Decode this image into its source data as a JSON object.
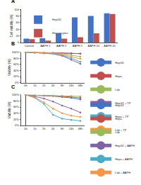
{
  "chart_data": [
    {
      "type": "bar",
      "title": "A",
      "y_label": "Cell viability (%)",
      "categories": [
        "Control",
        "AAPH 1",
        "AAPH 2",
        "AAPH 5",
        "AAPH 10",
        "AAPH 20"
      ],
      "series": [
        {
          "name": "HepG2",
          "color": "#4472c4",
          "values": [
            12,
            13,
            27,
            76,
            80,
            88
          ]
        },
        {
          "name": "Hepatocytes",
          "color": "#c0504d",
          "values": [
            10,
            6,
            12,
            16,
            28,
            86
          ]
        }
      ],
      "ylim": [
        0,
        100
      ],
      "yticks": [
        0,
        20,
        40,
        60,
        80,
        100
      ],
      "grid": false,
      "legend": "top left"
    },
    {
      "type": "line",
      "title": "B",
      "y_label": "Viability (%)",
      "marker": "circle",
      "categories": [
        "0h",
        "1h",
        "2h",
        "4h",
        "8h",
        "24h",
        "48h"
      ],
      "series": [
        {
          "name": "HepG2",
          "color": "#4472c4",
          "values": [
            100,
            99,
            99,
            98,
            97,
            96,
            95
          ]
        },
        {
          "name": "Hepa",
          "color": "#c0504d",
          "values": [
            100,
            99,
            98,
            98,
            97,
            96,
            95
          ]
        },
        {
          "name": "Lab",
          "color": "#9bbb59",
          "values": [
            100,
            99,
            98,
            97,
            95,
            90,
            85
          ]
        },
        {
          "name": "HepG2 + TP",
          "color": "#8064a2",
          "values": [
            100,
            98,
            96,
            94,
            88,
            75,
            62
          ]
        },
        {
          "name": "Hepa + TP",
          "color": "#4bacc6",
          "values": [
            100,
            98,
            97,
            95,
            90,
            80,
            68
          ]
        },
        {
          "name": "Lab + TP",
          "color": "#f79646",
          "values": [
            100,
            99,
            98,
            96,
            92,
            85,
            78
          ]
        }
      ],
      "ylim": [
        0,
        100
      ],
      "yticks": [
        {
          "value": 0,
          "label": "0%"
        },
        {
          "value": 20,
          "label": "20%"
        },
        {
          "value": 40,
          "label": "40%"
        },
        {
          "value": 60,
          "label": "60%"
        },
        {
          "value": 80,
          "label": "80%"
        },
        {
          "value": 100,
          "label": "100%"
        }
      ],
      "grid": false,
      "legend": "right"
    },
    {
      "type": "line",
      "title": "C",
      "y_label": "Viability (%)",
      "marker": "circle",
      "categories": [
        "0h",
        "1h",
        "2h",
        "4h",
        "8h",
        "24h",
        "48h"
      ],
      "series": [
        {
          "name": "HepG2",
          "color": "#4472c4",
          "values": [
            100,
            99,
            98,
            96,
            93,
            90,
            85
          ]
        },
        {
          "name": "Hepa",
          "color": "#c0504d",
          "values": [
            100,
            99,
            98,
            97,
            95,
            93,
            90
          ]
        },
        {
          "name": "Lab",
          "color": "#9bbb59",
          "values": [
            100,
            99,
            99,
            98,
            97,
            96,
            95
          ]
        },
        {
          "name": "HepG2 + AAPH",
          "color": "#8064a2",
          "values": [
            100,
            95,
            88,
            78,
            65,
            55,
            42
          ]
        },
        {
          "name": "Hepa + AAPH",
          "color": "#4bacc6",
          "values": [
            100,
            90,
            70,
            35,
            22,
            18,
            15
          ]
        },
        {
          "name": "Lab + AAPH",
          "color": "#f79646",
          "values": [
            100,
            92,
            75,
            55,
            40,
            32,
            28
          ]
        }
      ],
      "ylim": [
        0,
        100
      ],
      "yticks": [
        {
          "value": 0,
          "label": "0%"
        },
        {
          "value": 20,
          "label": "20%"
        },
        {
          "value": 40,
          "label": "40%"
        },
        {
          "value": 60,
          "label": "60%"
        },
        {
          "value": 80,
          "label": "80%"
        },
        {
          "value": 100,
          "label": "100%"
        }
      ],
      "grid": false,
      "legend": "right"
    }
  ]
}
